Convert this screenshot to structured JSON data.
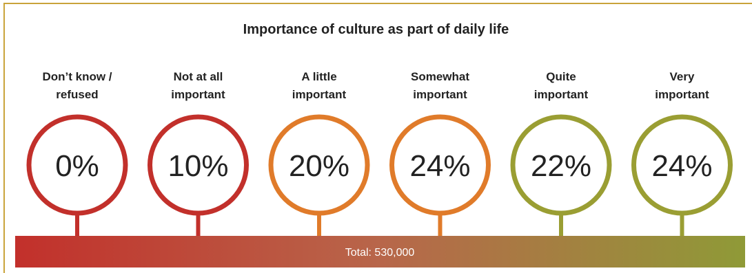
{
  "chart_data": {
    "type": "bubble-scale",
    "title": "Importance of culture as part of daily life",
    "categories": [
      {
        "label_lines": [
          "Don’t know /",
          "refused"
        ],
        "value": 0,
        "display": "0%",
        "color": "#c2302b"
      },
      {
        "label_lines": [
          "Not at all",
          "important"
        ],
        "value": 10,
        "display": "10%",
        "color": "#c2302b"
      },
      {
        "label_lines": [
          "A little",
          "important"
        ],
        "value": 20,
        "display": "20%",
        "color": "#e07b2a"
      },
      {
        "label_lines": [
          "Somewhat",
          "important"
        ],
        "value": 24,
        "display": "24%",
        "color": "#e07b2a"
      },
      {
        "label_lines": [
          "Quite",
          "important"
        ],
        "value": 22,
        "display": "22%",
        "color": "#9a9e33"
      },
      {
        "label_lines": [
          "Very",
          "important"
        ],
        "value": 24,
        "display": "24%",
        "color": "#9a9e33"
      }
    ],
    "total_label": "Total: 530,000",
    "gradient_colors": [
      "#c2302b",
      "#b8664a",
      "#8f9a37"
    ]
  },
  "frame_color": "#c9a33a"
}
